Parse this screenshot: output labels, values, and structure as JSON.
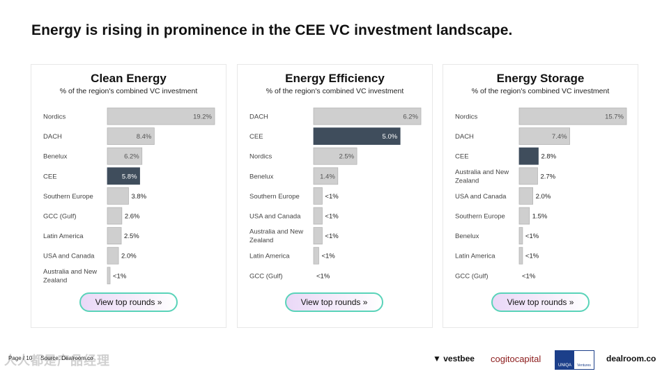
{
  "page_title": "Energy is rising in prominence in the CEE VC investment landscape.",
  "colors": {
    "bar": "#cfcfcf",
    "bar_stroke": "#b5b5b5",
    "highlight": "#3f4d5c",
    "button_border": "#5ad3b9"
  },
  "chart_data": [
    {
      "type": "bar",
      "orientation": "horizontal",
      "title": "Clean Energy",
      "subtitle": "% of the region's combined VC investment",
      "unit": "%",
      "highlight": "CEE",
      "button_label": "View top rounds »",
      "categories": [
        "Nordics",
        "DACH",
        "Benelux",
        "CEE",
        "Southern Europe",
        "GCC (Gulf)",
        "Latin America",
        "USA and Canada",
        "Australia and New Zealand"
      ],
      "values": [
        19.2,
        8.4,
        6.2,
        5.8,
        3.8,
        2.6,
        2.5,
        2.0,
        0.5
      ],
      "labels": [
        "19.2%",
        "8.4%",
        "6.2%",
        "5.8%",
        "3.8%",
        "2.6%",
        "2.5%",
        "2.0%",
        "<1%"
      ]
    },
    {
      "type": "bar",
      "orientation": "horizontal",
      "title": "Energy Efficiency",
      "subtitle": "% of the region's combined VC investment",
      "unit": "%",
      "highlight": "CEE",
      "button_label": "View top rounds »",
      "categories": [
        "DACH",
        "CEE",
        "Nordics",
        "Benelux",
        "Southern Europe",
        "USA and Canada",
        "Australia and New Zealand",
        "Latin America",
        "GCC (Gulf)"
      ],
      "values": [
        6.2,
        5.0,
        2.5,
        1.4,
        0.5,
        0.5,
        0.5,
        0.3,
        0
      ],
      "labels": [
        "6.2%",
        "5.0%",
        "2.5%",
        "1.4%",
        "<1%",
        "<1%",
        "<1%",
        "<1%",
        "<1%"
      ]
    },
    {
      "type": "bar",
      "orientation": "horizontal",
      "title": "Energy Storage",
      "subtitle": "% of the region's combined VC investment",
      "unit": "%",
      "highlight": "CEE",
      "button_label": "View top rounds »",
      "categories": [
        "Nordics",
        "DACH",
        "CEE",
        "Australia and New Zealand",
        "USA and Canada",
        "Southern Europe",
        "Benelux",
        "Latin America",
        "GCC (Gulf)"
      ],
      "values": [
        15.7,
        7.4,
        2.8,
        2.7,
        2.0,
        1.5,
        0.5,
        0.5,
        0
      ],
      "labels": [
        "15.7%",
        "7.4%",
        "2.8%",
        "2.7%",
        "2.0%",
        "1.5%",
        "<1%",
        "<1%",
        "<1%"
      ]
    }
  ],
  "footer": {
    "page": "Page / 10",
    "source": "Source: Dealroom.co",
    "watermark": "人人都是产品经理"
  },
  "logos": {
    "vestbee": "vestbee",
    "cogito": "cogitocapital",
    "uniqa_left": "UNIQA",
    "uniqa_right": "Ventures",
    "dealroom": "dealroom.co"
  }
}
